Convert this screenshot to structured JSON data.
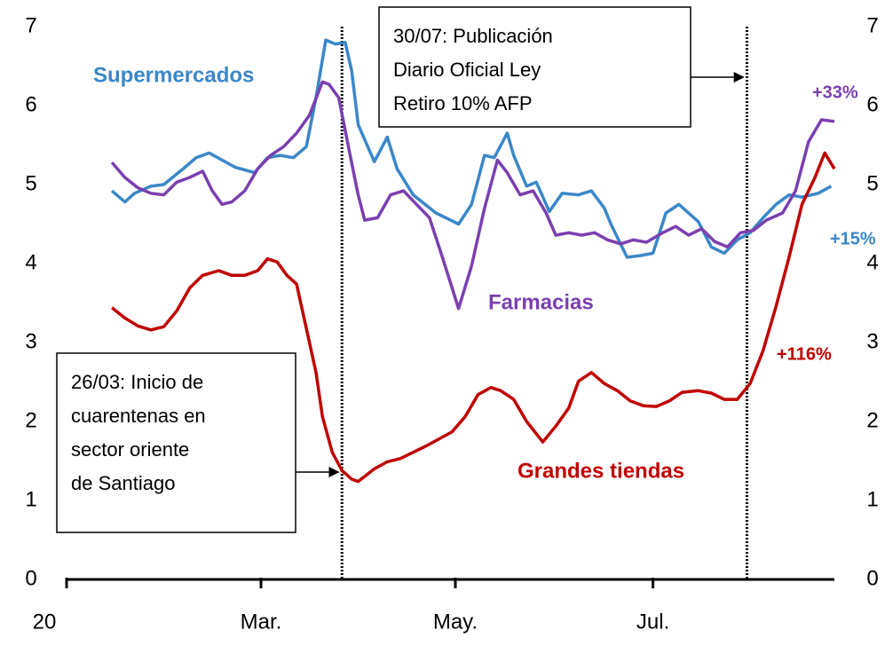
{
  "chart_data": {
    "type": "line",
    "xlim": [
      0,
      237
    ],
    "xticks": [
      {
        "value": 0,
        "label": "20"
      },
      {
        "value": 60,
        "label": "Mar."
      },
      {
        "value": 120,
        "label": "May."
      },
      {
        "value": 181,
        "label": "Jul."
      }
    ],
    "ylim": [
      0,
      7
    ],
    "yticks": [
      0,
      1,
      2,
      3,
      4,
      5,
      6,
      7
    ],
    "y2lim": [
      0,
      7
    ],
    "y2ticks": [
      0,
      1,
      2,
      3,
      4,
      5,
      6,
      7
    ],
    "series": [
      {
        "name": "Supermercados",
        "color": "#3a87c8",
        "end_label": "+15%",
        "x": [
          14,
          18,
          21,
          26,
          30,
          36,
          40,
          44,
          48,
          52,
          58,
          62,
          66,
          70,
          74,
          77,
          80,
          83,
          86,
          88,
          90,
          95,
          99,
          102,
          107,
          114,
          121,
          125,
          129,
          132,
          136,
          138,
          142,
          145,
          149,
          153,
          158,
          162,
          166,
          168,
          173,
          177,
          181,
          185,
          189,
          195,
          199,
          203,
          207,
          211,
          215,
          219,
          223,
          227,
          232,
          236
        ],
        "values": [
          4.92,
          4.78,
          4.89,
          4.98,
          5.0,
          5.2,
          5.34,
          5.4,
          5.31,
          5.22,
          5.15,
          5.34,
          5.37,
          5.34,
          5.48,
          6.1,
          6.83,
          6.78,
          6.8,
          6.44,
          5.76,
          5.29,
          5.6,
          5.2,
          4.87,
          4.64,
          4.5,
          4.75,
          5.37,
          5.34,
          5.65,
          5.37,
          4.98,
          5.03,
          4.66,
          4.89,
          4.87,
          4.92,
          4.7,
          4.5,
          4.08,
          4.1,
          4.13,
          4.64,
          4.75,
          4.53,
          4.21,
          4.13,
          4.3,
          4.39,
          4.58,
          4.75,
          4.87,
          4.84,
          4.89,
          4.98
        ]
      },
      {
        "name": "Farmacias",
        "color": "#7b3fb0",
        "end_label": "+33%",
        "x": [
          14,
          18,
          22,
          26,
          30,
          34,
          38,
          42,
          45,
          48,
          51,
          55,
          59,
          63,
          67,
          71,
          75,
          79,
          81,
          84,
          87,
          90,
          92,
          96,
          100,
          104,
          108,
          112,
          116,
          121,
          125,
          129,
          133,
          136,
          140,
          144,
          148,
          151,
          155,
          159,
          163,
          167,
          171,
          175,
          179,
          184,
          188,
          192,
          196,
          200,
          204,
          208,
          212,
          216,
          221,
          225,
          229,
          233,
          237
        ],
        "values": [
          5.28,
          5.09,
          4.96,
          4.89,
          4.87,
          5.03,
          5.09,
          5.17,
          4.92,
          4.75,
          4.78,
          4.92,
          5.2,
          5.37,
          5.48,
          5.65,
          5.88,
          6.3,
          6.27,
          6.1,
          5.48,
          4.87,
          4.55,
          4.58,
          4.87,
          4.92,
          4.75,
          4.58,
          4.08,
          3.43,
          3.97,
          4.7,
          5.31,
          5.15,
          4.87,
          4.92,
          4.64,
          4.36,
          4.39,
          4.36,
          4.39,
          4.3,
          4.25,
          4.3,
          4.27,
          4.39,
          4.47,
          4.36,
          4.44,
          4.28,
          4.21,
          4.39,
          4.42,
          4.55,
          4.64,
          4.92,
          5.54,
          5.82,
          5.8
        ]
      },
      {
        "name": "Grandes tiendas",
        "color": "#c00000",
        "end_label": "+116%",
        "x": [
          14,
          18,
          22,
          26,
          30,
          34,
          38,
          42,
          47,
          51,
          55,
          59,
          62,
          65,
          68,
          71,
          74,
          77,
          79,
          82,
          85,
          88,
          90,
          95,
          99,
          103,
          107,
          111,
          115,
          119,
          123,
          127,
          131,
          134,
          138,
          142,
          147,
          151,
          155,
          158,
          162,
          166,
          170,
          174,
          178,
          182,
          186,
          190,
          195,
          199,
          203,
          207,
          211,
          215,
          219,
          223,
          227,
          231,
          234,
          237
        ],
        "values": [
          3.44,
          3.31,
          3.21,
          3.16,
          3.2,
          3.4,
          3.69,
          3.85,
          3.91,
          3.85,
          3.85,
          3.91,
          4.06,
          4.02,
          3.85,
          3.74,
          3.18,
          2.62,
          2.06,
          1.61,
          1.38,
          1.27,
          1.24,
          1.4,
          1.49,
          1.53,
          1.61,
          1.69,
          1.78,
          1.87,
          2.06,
          2.34,
          2.43,
          2.39,
          2.28,
          2.0,
          1.74,
          1.94,
          2.17,
          2.51,
          2.62,
          2.48,
          2.39,
          2.26,
          2.2,
          2.19,
          2.26,
          2.37,
          2.39,
          2.36,
          2.28,
          2.28,
          2.48,
          2.9,
          3.46,
          4.08,
          4.75,
          5.09,
          5.4,
          5.2
        ]
      }
    ],
    "annotations": [
      {
        "x": 85,
        "lines": [
          "26/03: Inicio de",
          "cuarentenas en",
          "sector oriente",
          "de Santiago"
        ]
      },
      {
        "x": 210,
        "lines": [
          "30/07: Publicación",
          "Diario Oficial Ley",
          "Retiro 10% AFP"
        ]
      }
    ]
  }
}
